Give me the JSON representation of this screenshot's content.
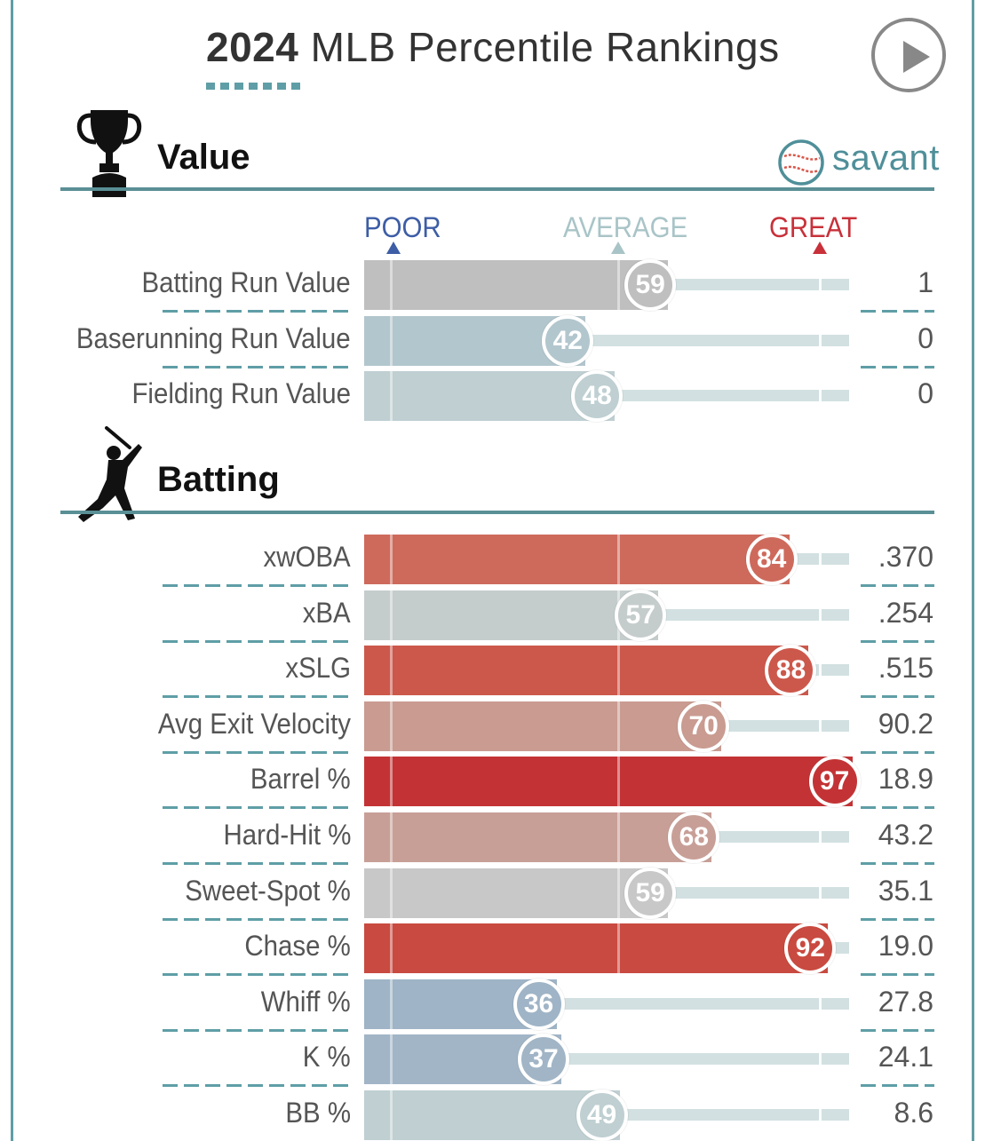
{
  "title": {
    "year": "2024",
    "rest": "MLB Percentile Rankings"
  },
  "brand": {
    "text": "savant",
    "icon": "baseball-icon"
  },
  "colors": {
    "accent": "#5f9ea6",
    "poor": "#3d5da6",
    "average": "#a9c4c7",
    "great": "#c8313a"
  },
  "legend": {
    "poor": "POOR",
    "average": "AVERAGE",
    "great": "GREAT"
  },
  "chart_data": [
    {
      "type": "bar",
      "title": "Value",
      "xlim": [
        0,
        100
      ],
      "categories": [
        "Batting Run Value",
        "Baserunning Run Value",
        "Fielding Run Value"
      ],
      "percentiles": [
        59,
        42,
        48
      ],
      "stat_values": [
        "1",
        "0",
        "0"
      ],
      "colors": [
        "#bfbfbf",
        "#b2c6cd",
        "#bfcfd2"
      ]
    },
    {
      "type": "bar",
      "title": "Batting",
      "xlim": [
        0,
        100
      ],
      "categories": [
        "xwOBA",
        "xBA",
        "xSLG",
        "Avg Exit Velocity",
        "Barrel %",
        "Hard-Hit %",
        "Sweet-Spot %",
        "Chase %",
        "Whiff %",
        "K %",
        "BB %"
      ],
      "percentiles": [
        84,
        57,
        88,
        70,
        97,
        68,
        59,
        92,
        36,
        37,
        49
      ],
      "stat_values": [
        ".370",
        ".254",
        ".515",
        "90.2",
        "18.9",
        "43.2",
        "35.1",
        "19.0",
        "27.8",
        "24.1",
        "8.6"
      ],
      "colors": [
        "#ce6a5c",
        "#c5cccc",
        "#cc584b",
        "#c99b91",
        "#c33335",
        "#c89f97",
        "#c8c8c8",
        "#c94a40",
        "#9fb4c6",
        "#a1b5c6",
        "#bfcfd2"
      ]
    }
  ]
}
